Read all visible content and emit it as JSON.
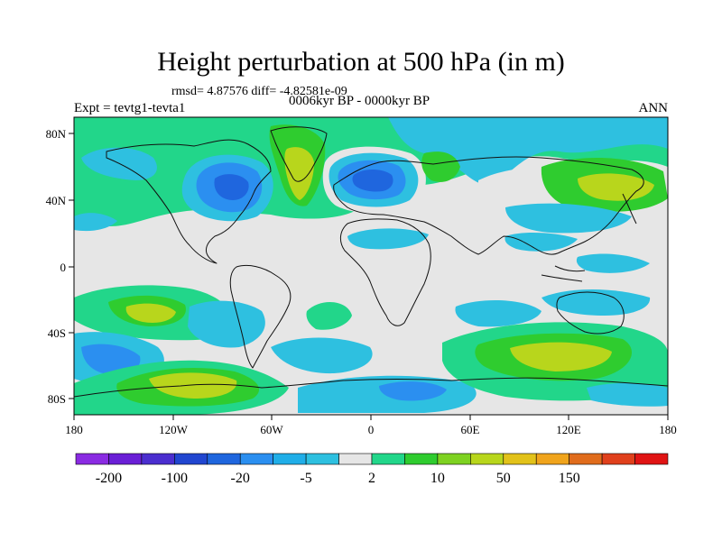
{
  "title": "Height perturbation at 500 hPa (in m)",
  "stats": "rmsd= 4.87576 diff= -4.82581e-09",
  "experiment": "Expt = tevtg1-tevta1",
  "period": "0006kyr BP - 0000kyr BP",
  "season": "ANN",
  "lon_ticks": [
    "180",
    "120W",
    "60W",
    "0",
    "60E",
    "120E",
    "180"
  ],
  "lat_ticks": [
    "80N",
    "40N",
    "0",
    "40S",
    "80S"
  ],
  "colorbar": {
    "colors": [
      "#8a2be2",
      "#6a1fd6",
      "#4b2ecf",
      "#2146d0",
      "#1f66de",
      "#2b8ff0",
      "#20aee8",
      "#2ec0e0",
      "#e6e6e6",
      "#22d68a",
      "#2fcc2f",
      "#7ed221",
      "#b8d61c",
      "#e2c21a",
      "#f0a41c",
      "#e06c1c",
      "#e0401c",
      "#e01414"
    ],
    "labels": [
      "-200",
      "-100",
      "-20",
      "-5",
      "2",
      "10",
      "50",
      "150"
    ]
  },
  "colors": {
    "background_field": "#e6e6e6",
    "blue_light": "#2ec0e0",
    "blue_mid": "#2b8ff0",
    "blue_dark": "#1f66de",
    "green": "#22d68a",
    "green_dark": "#2fcc2f",
    "yellow_green": "#b8d61c",
    "coast": "#111111"
  }
}
